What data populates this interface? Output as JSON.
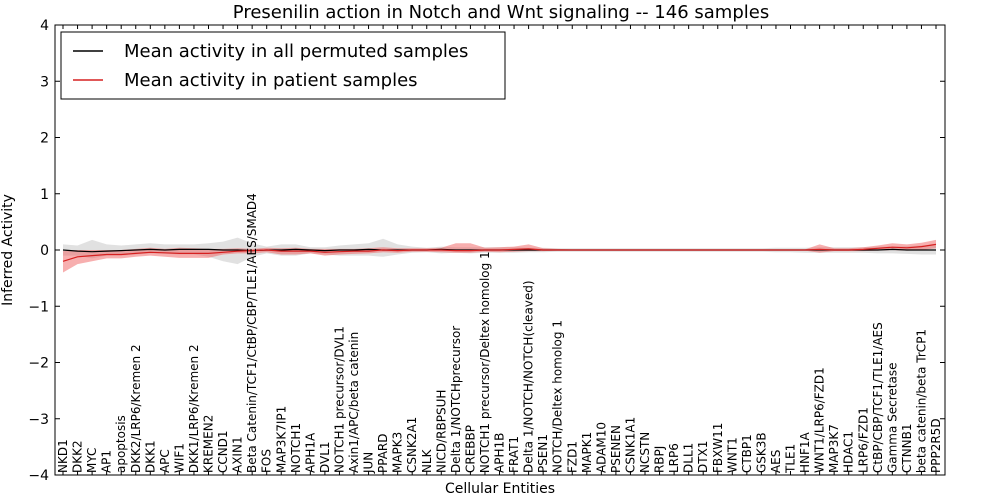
{
  "chart_data": {
    "type": "line",
    "title": "Presenilin action in Notch and Wnt signaling -- 146 samples",
    "xlabel": "Cellular Entities",
    "ylabel": "Inferred Activity",
    "ylim": [
      -4,
      4
    ],
    "yticks": [
      -4,
      -3,
      -2,
      -1,
      0,
      1,
      2,
      3,
      4
    ],
    "ytick_labels": [
      "−4",
      "−3",
      "−2",
      "−1",
      "0",
      "1",
      "2",
      "3",
      "4"
    ],
    "grid": false,
    "legend_position": "top-left",
    "categories": [
      "NKD1",
      "DKK2",
      "MYC",
      "AP1",
      "apoptosis",
      "DKK2/LRP6/Kremen 2",
      "DKK1",
      "APC",
      "WIF1",
      "DKK1/LRP6/Kremen 2",
      "KREMEN2",
      "CCND1",
      "AXIN1",
      "Beta Catenin/TCF1/CtBP/CBP/TLE1/AES/SMAD4",
      "FOS",
      "MAP3K7IP1",
      "NOTCH1",
      "APH1A",
      "DVL1",
      "NOTCH1 precursor/DVL1",
      "Axin1/APC/beta catenin",
      "JUN",
      "PPARD",
      "MAPK3",
      "CSNK2A1",
      "NLK",
      "NICD/RBPSUH",
      "Delta 1/NOTCHprecursor",
      "CREBBP",
      "NOTCH1 precursor/Deltex homolog 1",
      "APH1B",
      "FRAT1",
      "Delta 1/NOTCH/NOTCH(cleaved)",
      "PSEN1",
      "NOTCH/Deltex homolog 1",
      "FZD1",
      "MAPK1",
      "ADAM10",
      "PSENEN",
      "CSNK1A1",
      "NCSTN",
      "RBPJ",
      "LRP6",
      "DLL1",
      "DTX1",
      "FBXW11",
      "WNT1",
      "CTBP1",
      "GSK3B",
      "AES",
      "TLE1",
      "HNF1A",
      "WNT1/LRP6/FZD1",
      "MAP3K7",
      "HDAC1",
      "LRP6/FZD1",
      "CtBP/CBP/TCF1/TLE1/AES",
      "Gamma Secretase",
      "CTNNB1",
      "beta catenin/beta TrCP1",
      "PPP2R5D"
    ],
    "series": [
      {
        "name": "Mean activity in all permuted samples",
        "color": "#000000",
        "values": [
          0.0,
          -0.02,
          -0.03,
          -0.02,
          -0.01,
          0.0,
          0.01,
          0.0,
          0.01,
          0.01,
          0.01,
          0.0,
          0.0,
          -0.01,
          0.0,
          0.0,
          0.01,
          0.0,
          -0.01,
          0.0,
          0.0,
          0.01,
          0.0,
          0.0,
          0.0,
          0.0,
          0.01,
          0.0,
          0.0,
          0.0,
          0.0,
          0.0,
          0.0,
          0.0,
          0.0,
          0.0,
          0.0,
          0.0,
          0.0,
          0.0,
          0.0,
          0.0,
          0.0,
          0.0,
          0.0,
          0.0,
          0.0,
          0.0,
          0.0,
          0.0,
          0.0,
          0.0,
          0.0,
          0.0,
          0.0,
          0.0,
          0.0,
          0.01,
          0.0,
          0.0,
          0.0
        ],
        "lower": [
          -0.1,
          -0.1,
          -0.15,
          -0.1,
          -0.1,
          -0.08,
          -0.06,
          -0.07,
          -0.08,
          -0.08,
          -0.12,
          -0.2,
          -0.25,
          -0.12,
          -0.06,
          -0.1,
          -0.1,
          -0.06,
          -0.08,
          -0.1,
          -0.1,
          -0.1,
          -0.12,
          -0.08,
          -0.05,
          -0.04,
          -0.06,
          -0.05,
          -0.06,
          -0.05,
          -0.05,
          -0.05,
          -0.04,
          -0.04,
          -0.03,
          -0.03,
          -0.03,
          -0.03,
          -0.03,
          -0.03,
          -0.03,
          -0.03,
          -0.03,
          -0.03,
          -0.03,
          -0.03,
          -0.03,
          -0.03,
          -0.03,
          -0.04,
          -0.04,
          -0.05,
          -0.05,
          -0.05,
          -0.05,
          -0.05,
          -0.06,
          -0.06,
          -0.07,
          -0.08,
          -0.08
        ],
        "upper": [
          0.1,
          0.08,
          0.18,
          0.1,
          0.08,
          0.1,
          0.12,
          0.1,
          0.1,
          0.1,
          0.12,
          0.15,
          0.22,
          0.12,
          0.06,
          0.1,
          0.1,
          0.05,
          0.05,
          0.08,
          0.1,
          0.12,
          0.2,
          0.1,
          0.06,
          0.04,
          0.06,
          0.05,
          0.05,
          0.05,
          0.05,
          0.05,
          0.04,
          0.04,
          0.03,
          0.03,
          0.03,
          0.03,
          0.03,
          0.03,
          0.03,
          0.03,
          0.03,
          0.03,
          0.03,
          0.03,
          0.03,
          0.03,
          0.03,
          0.04,
          0.04,
          0.04,
          0.05,
          0.05,
          0.05,
          0.05,
          0.06,
          0.06,
          0.07,
          0.08,
          0.08
        ]
      },
      {
        "name": "Mean activity in patient samples",
        "color": "#d62020",
        "values": [
          -0.2,
          -0.12,
          -0.1,
          -0.08,
          -0.08,
          -0.06,
          -0.04,
          -0.05,
          -0.06,
          -0.06,
          -0.06,
          -0.04,
          -0.02,
          -0.01,
          0.0,
          -0.02,
          -0.02,
          -0.02,
          -0.04,
          -0.03,
          -0.02,
          -0.02,
          0.0,
          -0.01,
          0.0,
          0.0,
          0.0,
          -0.01,
          -0.01,
          0.0,
          0.0,
          0.01,
          0.02,
          0.0,
          0.0,
          0.0,
          0.0,
          0.0,
          0.0,
          0.0,
          0.0,
          0.0,
          0.0,
          0.0,
          0.0,
          0.0,
          0.0,
          0.0,
          0.0,
          0.0,
          0.0,
          0.0,
          0.01,
          0.0,
          0.0,
          0.01,
          0.03,
          0.05,
          0.04,
          0.06,
          0.1
        ],
        "lower": [
          -0.4,
          -0.25,
          -0.2,
          -0.15,
          -0.15,
          -0.12,
          -0.1,
          -0.12,
          -0.14,
          -0.14,
          -0.14,
          -0.08,
          -0.06,
          -0.06,
          -0.04,
          -0.08,
          -0.08,
          -0.06,
          -0.1,
          -0.08,
          -0.07,
          -0.06,
          -0.04,
          -0.05,
          -0.03,
          -0.03,
          -0.04,
          -0.05,
          -0.05,
          -0.03,
          -0.04,
          -0.03,
          -0.02,
          -0.02,
          -0.01,
          -0.01,
          -0.01,
          -0.01,
          -0.01,
          -0.01,
          -0.01,
          -0.01,
          -0.01,
          -0.01,
          -0.01,
          -0.01,
          -0.01,
          -0.01,
          -0.01,
          -0.01,
          -0.01,
          -0.01,
          -0.05,
          -0.02,
          -0.02,
          -0.02,
          -0.01,
          0.0,
          -0.01,
          0.0,
          0.03
        ],
        "upper": [
          -0.02,
          0.0,
          0.0,
          0.0,
          0.0,
          0.02,
          0.04,
          0.02,
          0.04,
          0.03,
          0.02,
          0.02,
          0.03,
          0.02,
          0.04,
          0.03,
          0.04,
          0.02,
          0.02,
          0.02,
          0.02,
          0.03,
          0.05,
          0.03,
          0.03,
          0.03,
          0.04,
          0.12,
          0.12,
          0.04,
          0.05,
          0.06,
          0.1,
          0.03,
          0.02,
          0.01,
          0.01,
          0.01,
          0.01,
          0.01,
          0.01,
          0.01,
          0.01,
          0.01,
          0.01,
          0.01,
          0.01,
          0.01,
          0.01,
          0.01,
          0.01,
          0.01,
          0.1,
          0.03,
          0.03,
          0.05,
          0.08,
          0.12,
          0.1,
          0.13,
          0.18
        ]
      }
    ]
  }
}
